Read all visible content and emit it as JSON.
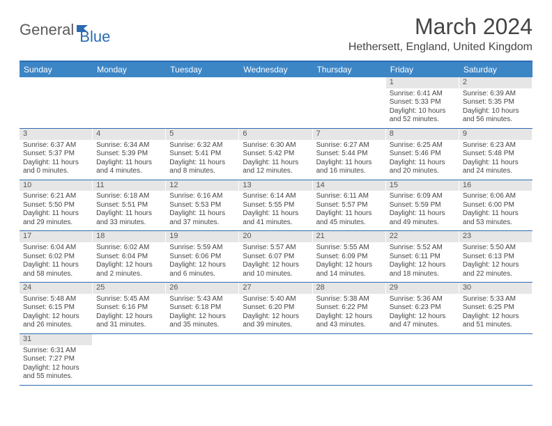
{
  "brand": {
    "part1": "General",
    "part2": "Blue"
  },
  "title": {
    "month": "March 2024",
    "location": "Hethersett, England, United Kingdom"
  },
  "colors": {
    "header_bg": "#3d86c6",
    "border": "#2a6bb0",
    "daynum_bg": "#e6e6e6",
    "text": "#444444"
  },
  "weekdays": [
    "Sunday",
    "Monday",
    "Tuesday",
    "Wednesday",
    "Thursday",
    "Friday",
    "Saturday"
  ],
  "weeks": [
    [
      null,
      null,
      null,
      null,
      null,
      {
        "n": "1",
        "sunrise": "Sunrise: 6:41 AM",
        "sunset": "Sunset: 5:33 PM",
        "day1": "Daylight: 10 hours",
        "day2": "and 52 minutes."
      },
      {
        "n": "2",
        "sunrise": "Sunrise: 6:39 AM",
        "sunset": "Sunset: 5:35 PM",
        "day1": "Daylight: 10 hours",
        "day2": "and 56 minutes."
      }
    ],
    [
      {
        "n": "3",
        "sunrise": "Sunrise: 6:37 AM",
        "sunset": "Sunset: 5:37 PM",
        "day1": "Daylight: 11 hours",
        "day2": "and 0 minutes."
      },
      {
        "n": "4",
        "sunrise": "Sunrise: 6:34 AM",
        "sunset": "Sunset: 5:39 PM",
        "day1": "Daylight: 11 hours",
        "day2": "and 4 minutes."
      },
      {
        "n": "5",
        "sunrise": "Sunrise: 6:32 AM",
        "sunset": "Sunset: 5:41 PM",
        "day1": "Daylight: 11 hours",
        "day2": "and 8 minutes."
      },
      {
        "n": "6",
        "sunrise": "Sunrise: 6:30 AM",
        "sunset": "Sunset: 5:42 PM",
        "day1": "Daylight: 11 hours",
        "day2": "and 12 minutes."
      },
      {
        "n": "7",
        "sunrise": "Sunrise: 6:27 AM",
        "sunset": "Sunset: 5:44 PM",
        "day1": "Daylight: 11 hours",
        "day2": "and 16 minutes."
      },
      {
        "n": "8",
        "sunrise": "Sunrise: 6:25 AM",
        "sunset": "Sunset: 5:46 PM",
        "day1": "Daylight: 11 hours",
        "day2": "and 20 minutes."
      },
      {
        "n": "9",
        "sunrise": "Sunrise: 6:23 AM",
        "sunset": "Sunset: 5:48 PM",
        "day1": "Daylight: 11 hours",
        "day2": "and 24 minutes."
      }
    ],
    [
      {
        "n": "10",
        "sunrise": "Sunrise: 6:21 AM",
        "sunset": "Sunset: 5:50 PM",
        "day1": "Daylight: 11 hours",
        "day2": "and 29 minutes."
      },
      {
        "n": "11",
        "sunrise": "Sunrise: 6:18 AM",
        "sunset": "Sunset: 5:51 PM",
        "day1": "Daylight: 11 hours",
        "day2": "and 33 minutes."
      },
      {
        "n": "12",
        "sunrise": "Sunrise: 6:16 AM",
        "sunset": "Sunset: 5:53 PM",
        "day1": "Daylight: 11 hours",
        "day2": "and 37 minutes."
      },
      {
        "n": "13",
        "sunrise": "Sunrise: 6:14 AM",
        "sunset": "Sunset: 5:55 PM",
        "day1": "Daylight: 11 hours",
        "day2": "and 41 minutes."
      },
      {
        "n": "14",
        "sunrise": "Sunrise: 6:11 AM",
        "sunset": "Sunset: 5:57 PM",
        "day1": "Daylight: 11 hours",
        "day2": "and 45 minutes."
      },
      {
        "n": "15",
        "sunrise": "Sunrise: 6:09 AM",
        "sunset": "Sunset: 5:59 PM",
        "day1": "Daylight: 11 hours",
        "day2": "and 49 minutes."
      },
      {
        "n": "16",
        "sunrise": "Sunrise: 6:06 AM",
        "sunset": "Sunset: 6:00 PM",
        "day1": "Daylight: 11 hours",
        "day2": "and 53 minutes."
      }
    ],
    [
      {
        "n": "17",
        "sunrise": "Sunrise: 6:04 AM",
        "sunset": "Sunset: 6:02 PM",
        "day1": "Daylight: 11 hours",
        "day2": "and 58 minutes."
      },
      {
        "n": "18",
        "sunrise": "Sunrise: 6:02 AM",
        "sunset": "Sunset: 6:04 PM",
        "day1": "Daylight: 12 hours",
        "day2": "and 2 minutes."
      },
      {
        "n": "19",
        "sunrise": "Sunrise: 5:59 AM",
        "sunset": "Sunset: 6:06 PM",
        "day1": "Daylight: 12 hours",
        "day2": "and 6 minutes."
      },
      {
        "n": "20",
        "sunrise": "Sunrise: 5:57 AM",
        "sunset": "Sunset: 6:07 PM",
        "day1": "Daylight: 12 hours",
        "day2": "and 10 minutes."
      },
      {
        "n": "21",
        "sunrise": "Sunrise: 5:55 AM",
        "sunset": "Sunset: 6:09 PM",
        "day1": "Daylight: 12 hours",
        "day2": "and 14 minutes."
      },
      {
        "n": "22",
        "sunrise": "Sunrise: 5:52 AM",
        "sunset": "Sunset: 6:11 PM",
        "day1": "Daylight: 12 hours",
        "day2": "and 18 minutes."
      },
      {
        "n": "23",
        "sunrise": "Sunrise: 5:50 AM",
        "sunset": "Sunset: 6:13 PM",
        "day1": "Daylight: 12 hours",
        "day2": "and 22 minutes."
      }
    ],
    [
      {
        "n": "24",
        "sunrise": "Sunrise: 5:48 AM",
        "sunset": "Sunset: 6:15 PM",
        "day1": "Daylight: 12 hours",
        "day2": "and 26 minutes."
      },
      {
        "n": "25",
        "sunrise": "Sunrise: 5:45 AM",
        "sunset": "Sunset: 6:16 PM",
        "day1": "Daylight: 12 hours",
        "day2": "and 31 minutes."
      },
      {
        "n": "26",
        "sunrise": "Sunrise: 5:43 AM",
        "sunset": "Sunset: 6:18 PM",
        "day1": "Daylight: 12 hours",
        "day2": "and 35 minutes."
      },
      {
        "n": "27",
        "sunrise": "Sunrise: 5:40 AM",
        "sunset": "Sunset: 6:20 PM",
        "day1": "Daylight: 12 hours",
        "day2": "and 39 minutes."
      },
      {
        "n": "28",
        "sunrise": "Sunrise: 5:38 AM",
        "sunset": "Sunset: 6:22 PM",
        "day1": "Daylight: 12 hours",
        "day2": "and 43 minutes."
      },
      {
        "n": "29",
        "sunrise": "Sunrise: 5:36 AM",
        "sunset": "Sunset: 6:23 PM",
        "day1": "Daylight: 12 hours",
        "day2": "and 47 minutes."
      },
      {
        "n": "30",
        "sunrise": "Sunrise: 5:33 AM",
        "sunset": "Sunset: 6:25 PM",
        "day1": "Daylight: 12 hours",
        "day2": "and 51 minutes."
      }
    ],
    [
      {
        "n": "31",
        "sunrise": "Sunrise: 6:31 AM",
        "sunset": "Sunset: 7:27 PM",
        "day1": "Daylight: 12 hours",
        "day2": "and 55 minutes."
      },
      null,
      null,
      null,
      null,
      null,
      null
    ]
  ]
}
